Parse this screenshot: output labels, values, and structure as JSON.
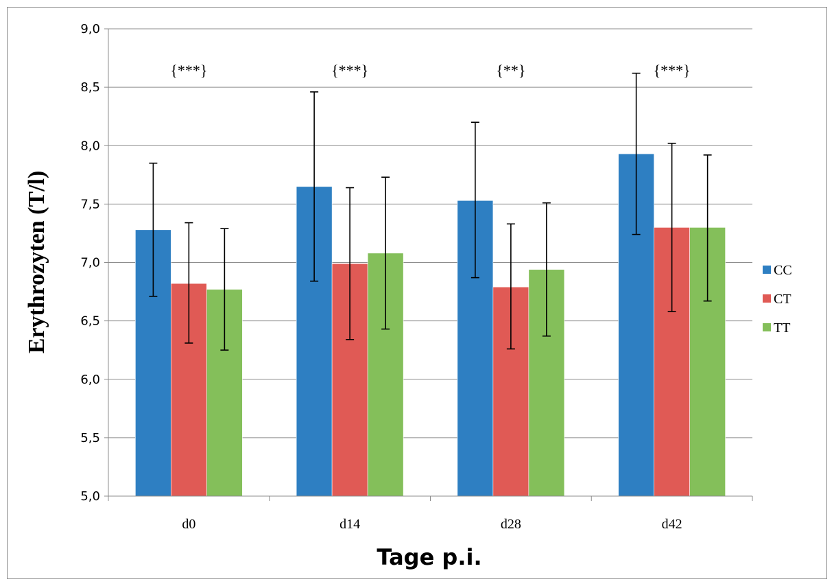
{
  "chart_data": {
    "type": "bar",
    "categories": [
      "d0",
      "d14",
      "d28",
      "d42"
    ],
    "series": [
      {
        "name": "CC",
        "color": "#2e7fc2",
        "values": [
          7.28,
          7.65,
          7.53,
          7.93
        ],
        "error_low": [
          6.71,
          6.84,
          6.87,
          7.24
        ],
        "error_high": [
          7.85,
          8.46,
          8.2,
          8.62
        ]
      },
      {
        "name": "CT",
        "color": "#e05a55",
        "values": [
          6.82,
          6.99,
          6.79,
          7.3
        ],
        "error_low": [
          6.31,
          6.34,
          6.26,
          6.58
        ],
        "error_high": [
          7.34,
          7.64,
          7.33,
          8.02
        ]
      },
      {
        "name": "TT",
        "color": "#84bf5a",
        "values": [
          6.77,
          7.08,
          6.94,
          7.3
        ],
        "error_low": [
          6.25,
          6.43,
          6.37,
          6.67
        ],
        "error_high": [
          7.29,
          7.73,
          7.51,
          7.92
        ]
      }
    ],
    "annotations": [
      "{***}",
      "{***}",
      "{**}",
      "{***}"
    ],
    "xlabel": "Tage p.i.",
    "ylabel": "Erythrozyten (T/l)",
    "ylim": [
      5.0,
      9.0
    ],
    "yticks": [
      "5,0",
      "5,5",
      "6,0",
      "6,5",
      "7,0",
      "7,5",
      "8,0",
      "8,5",
      "9,0"
    ],
    "grid": true,
    "legend": "right"
  }
}
